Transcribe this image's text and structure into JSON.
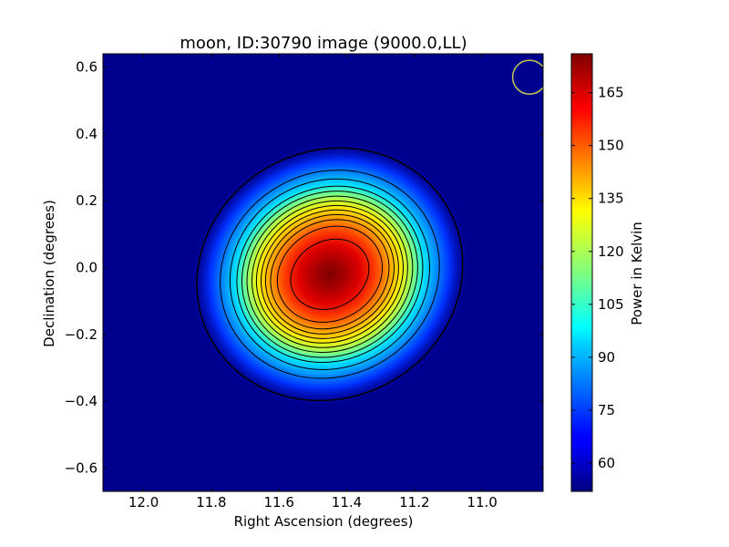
{
  "chart_data": {
    "type": "heatmap",
    "title": "moon, ID:30790 image (9000.0,LL)",
    "xlabel": "Right Ascension (degrees)",
    "ylabel": "Declination (degrees)",
    "xlim": [
      12.12,
      10.82
    ],
    "ylim": [
      -0.67,
      0.64
    ],
    "x_reversed": true,
    "x_ticks": [
      {
        "value": 12.0,
        "label": "12.0"
      },
      {
        "value": 11.8,
        "label": "11.8"
      },
      {
        "value": 11.6,
        "label": "11.6"
      },
      {
        "value": 11.4,
        "label": "11.4"
      },
      {
        "value": 11.2,
        "label": "11.2"
      },
      {
        "value": 11.0,
        "label": "11.0"
      }
    ],
    "y_ticks": [
      {
        "value": 0.6,
        "label": "0.6"
      },
      {
        "value": 0.4,
        "label": "0.4"
      },
      {
        "value": 0.2,
        "label": "0.2"
      },
      {
        "value": 0.0,
        "label": "0.0"
      },
      {
        "value": -0.2,
        "label": "−0.2"
      },
      {
        "value": -0.4,
        "label": "−0.4"
      },
      {
        "value": -0.6,
        "label": "−0.6"
      }
    ],
    "source": {
      "center_ra": 11.45,
      "center_dec": -0.02,
      "peak_kelvin": 176,
      "background_kelvin": 52,
      "rotation_deg": -28
    },
    "contours": [
      {
        "level": 56,
        "ra_radius": 0.4,
        "dec_radius": 0.37
      },
      {
        "level": 63,
        "ra_radius": 0.33,
        "dec_radius": 0.305
      },
      {
        "level": 72,
        "ra_radius": 0.3,
        "dec_radius": 0.28
      },
      {
        "level": 80,
        "ra_radius": 0.28,
        "dec_radius": 0.258
      },
      {
        "level": 88,
        "ra_radius": 0.265,
        "dec_radius": 0.243
      },
      {
        "level": 96,
        "ra_radius": 0.25,
        "dec_radius": 0.228
      },
      {
        "level": 104,
        "ra_radius": 0.235,
        "dec_radius": 0.214
      },
      {
        "level": 112,
        "ra_radius": 0.222,
        "dec_radius": 0.2
      },
      {
        "level": 120,
        "ra_radius": 0.208,
        "dec_radius": 0.187
      },
      {
        "level": 128,
        "ra_radius": 0.195,
        "dec_radius": 0.173
      },
      {
        "level": 136,
        "ra_radius": 0.18,
        "dec_radius": 0.158
      },
      {
        "level": 146,
        "ra_radius": 0.16,
        "dec_radius": 0.138
      },
      {
        "level": 160,
        "ra_radius": 0.12,
        "dec_radius": 0.1
      }
    ],
    "beam": {
      "ra": 10.86,
      "dec": 0.57,
      "radius": 0.05,
      "color": "#c8c850"
    },
    "colorbar": {
      "label": "Power in Kelvin",
      "min": 52,
      "max": 176,
      "colormap": "jet",
      "ticks": [
        {
          "value": 60,
          "label": "60"
        },
        {
          "value": 75,
          "label": "75"
        },
        {
          "value": 90,
          "label": "90"
        },
        {
          "value": 105,
          "label": "105"
        },
        {
          "value": 120,
          "label": "120"
        },
        {
          "value": 135,
          "label": "135"
        },
        {
          "value": 150,
          "label": "150"
        },
        {
          "value": 165,
          "label": "165"
        }
      ]
    },
    "grid": false,
    "legend": "none"
  }
}
